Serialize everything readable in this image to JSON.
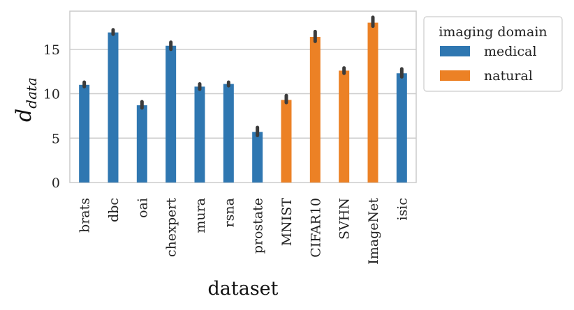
{
  "chart_data": {
    "type": "bar",
    "xlabel": "dataset",
    "ylabel": {
      "main": "d",
      "subscript": "data"
    },
    "ylim": [
      0,
      19.3
    ],
    "yticks": [
      0,
      5,
      10,
      15
    ],
    "ytick_labels": [
      "0",
      "5",
      "10",
      "15"
    ],
    "grid": "horizontal",
    "legend": {
      "title": "imaging domain",
      "placement": "outside-right",
      "entries": [
        {
          "label": "medical",
          "color": "#2f77b1"
        },
        {
          "label": "natural",
          "color": "#ec8125"
        }
      ]
    },
    "bars": [
      {
        "category": "brats",
        "domain": "medical",
        "value": 11.0,
        "ci": [
          10.8,
          11.3
        ]
      },
      {
        "category": "dbc",
        "domain": "medical",
        "value": 16.9,
        "ci": [
          16.7,
          17.2
        ]
      },
      {
        "category": "oai",
        "domain": "medical",
        "value": 8.7,
        "ci": [
          8.4,
          9.1
        ]
      },
      {
        "category": "chexpert",
        "domain": "medical",
        "value": 15.4,
        "ci": [
          15.0,
          15.8
        ]
      },
      {
        "category": "mura",
        "domain": "medical",
        "value": 10.8,
        "ci": [
          10.5,
          11.1
        ]
      },
      {
        "category": "rsna",
        "domain": "medical",
        "value": 11.1,
        "ci": [
          10.9,
          11.3
        ]
      },
      {
        "category": "prostate",
        "domain": "medical",
        "value": 5.7,
        "ci": [
          5.3,
          6.2
        ]
      },
      {
        "category": "MNIST",
        "domain": "natural",
        "value": 9.3,
        "ci": [
          9.0,
          9.8
        ]
      },
      {
        "category": "CIFAR10",
        "domain": "natural",
        "value": 16.4,
        "ci": [
          15.9,
          17.0
        ]
      },
      {
        "category": "SVHN",
        "domain": "natural",
        "value": 12.6,
        "ci": [
          12.3,
          12.9
        ]
      },
      {
        "category": "ImageNet",
        "domain": "natural",
        "value": 18.0,
        "ci": [
          17.6,
          18.6
        ]
      },
      {
        "category": "isic",
        "domain": "medical",
        "value": 12.3,
        "ci": [
          11.9,
          12.8
        ]
      }
    ]
  }
}
